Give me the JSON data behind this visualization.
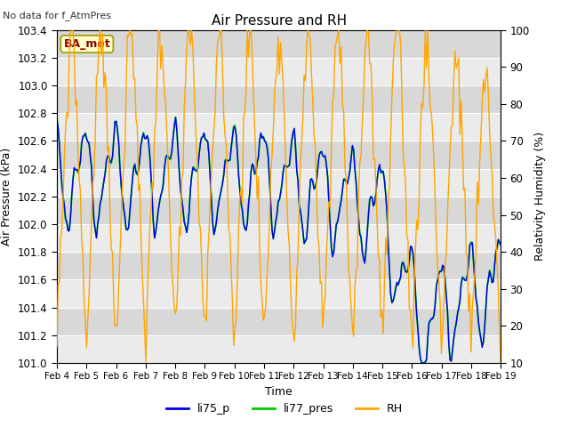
{
  "title": "Air Pressure and RH",
  "top_left_text": "No data for f_AtmPres",
  "legend_box_text": "BA_met",
  "xlabel": "Time",
  "ylabel_left": "Air Pressure (kPa)",
  "ylabel_right": "Relativity Humidity (%)",
  "ylim_left": [
    101.0,
    103.4
  ],
  "ylim_right": [
    10,
    100
  ],
  "yticks_left": [
    101.0,
    101.2,
    101.4,
    101.6,
    101.8,
    102.0,
    102.2,
    102.4,
    102.6,
    102.8,
    103.0,
    103.2,
    103.4
  ],
  "yticks_right": [
    10,
    20,
    30,
    40,
    50,
    60,
    70,
    80,
    90,
    100
  ],
  "xtick_labels": [
    "Feb 4",
    "Feb 5",
    "Feb 6",
    "Feb 7",
    "Feb 8",
    "Feb 9",
    "Feb 10",
    "Feb 11",
    "Feb 12",
    "Feb 13",
    "Feb 14",
    "Feb 15",
    "Feb 16",
    "Feb 17",
    "Feb 18",
    "Feb 19"
  ],
  "color_li75": "#0000ee",
  "color_li77": "#00cc00",
  "color_rh": "#ffa500",
  "legend_items": [
    "li75_p",
    "li77_pres",
    "RH"
  ],
  "legend_colors": [
    "#0000ee",
    "#00cc00",
    "#ffa500"
  ],
  "band_colors": [
    "#ebebeb",
    "#d8d8d8"
  ]
}
